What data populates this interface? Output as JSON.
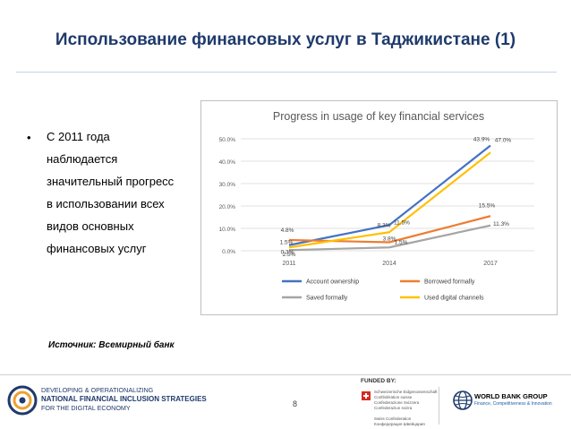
{
  "slide": {
    "title": "Использование финансовых услуг в Таджикистане (1)",
    "bullet_symbol": "•",
    "bullet_lines": [
      "С 2011 года",
      "наблюдается",
      "значительный прогресс",
      "в использовании всех",
      "видов основных",
      "финансовых услуг"
    ],
    "source": "Источник: Всемирный банк",
    "page_number": "8"
  },
  "footer": {
    "program_line1": "DEVELOPING & OPERATIONALIZING",
    "program_line2": "NATIONAL FINANCIAL INCLUSION STRATEGIES",
    "program_line3": "FOR THE DIGITAL ECONOMY",
    "funded_by": "FUNDED BY:",
    "swiss_lines": [
      "Schweizerische Eidgenossenschaft",
      "Confédération suisse",
      "Confederazione Svizzera",
      "Confederaziun svizra",
      "",
      "Swiss Confederation",
      "Конфедерация Швейцария"
    ],
    "wb_name": "WORLD BANK GROUP",
    "wb_sub": "Finance, Competitiveness & Innovation",
    "colors": {
      "navy": "#1f3a6b",
      "swiss_red": "#d52b1e",
      "wb_blue": "#1f5fa8"
    }
  },
  "chart_data": {
    "type": "line",
    "title": "Progress in usage of key financial services",
    "x": [
      "2011",
      "2014",
      "2017"
    ],
    "ylim": [
      0,
      50
    ],
    "yticks": [
      "0.0%",
      "10.0%",
      "20.0%",
      "30.0%",
      "40.0%",
      "50.0%"
    ],
    "ytick_values": [
      0,
      10,
      20,
      30,
      40,
      50
    ],
    "grid": true,
    "legend_position": "bottom",
    "series": [
      {
        "name": "Account ownership",
        "color": "#4472c4",
        "values": [
          2.5,
          11.5,
          47.0
        ],
        "labels": [
          "2.5%",
          "11.5%",
          "47.0%"
        ]
      },
      {
        "name": "Borrowed formally",
        "color": "#ed7d31",
        "values": [
          4.8,
          3.8,
          15.5
        ],
        "labels": [
          "4.8%",
          "3.8%",
          "15.5%"
        ]
      },
      {
        "name": "Saved formally",
        "color": "#a5a5a5",
        "values": [
          0.3,
          1.5,
          11.3
        ],
        "labels": [
          "0.3%",
          "1.5%",
          "11.3%"
        ]
      },
      {
        "name": "Used digital channels",
        "color": "#ffc000",
        "values": [
          1.5,
          8.3,
          43.9
        ],
        "labels": [
          "1.5%",
          "8.3%",
          "43.9%"
        ]
      }
    ]
  }
}
